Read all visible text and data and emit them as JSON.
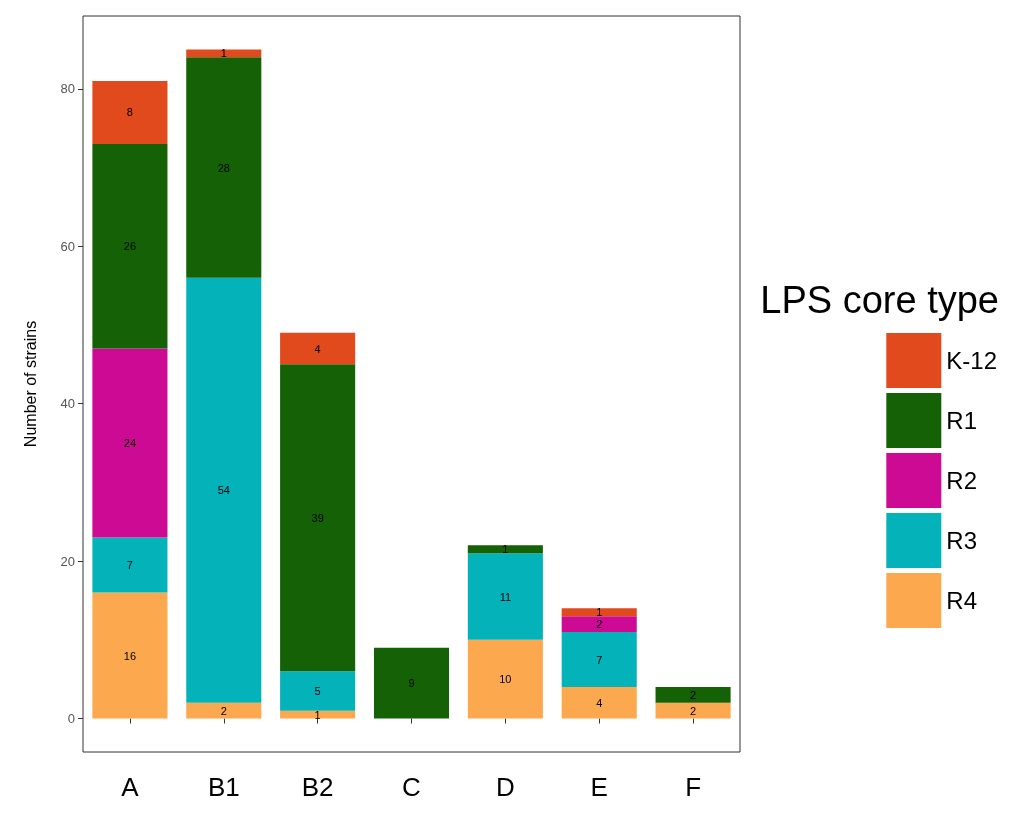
{
  "chart_data": {
    "type": "bar",
    "stacked": true,
    "ylabel": "Number of strains",
    "legend_title": "LPS core type",
    "legend": "right",
    "grid": false,
    "data_labels": true,
    "categories": [
      "A",
      "B1",
      "B2",
      "C",
      "D",
      "E",
      "F"
    ],
    "ylim": [
      -4.25,
      89.25
    ],
    "yticks": [
      0,
      20,
      40,
      60,
      80
    ],
    "series": [
      {
        "name": "R4",
        "color": "#fba84e",
        "values": [
          16,
          2,
          1,
          null,
          10,
          4,
          2
        ]
      },
      {
        "name": "R3",
        "color": "#04b3b9",
        "values": [
          7,
          54,
          5,
          null,
          11,
          7,
          null
        ]
      },
      {
        "name": "R2",
        "color": "#cc0a93",
        "values": [
          24,
          null,
          null,
          null,
          null,
          2,
          null
        ]
      },
      {
        "name": "R1",
        "color": "#156106",
        "values": [
          26,
          28,
          39,
          9,
          1,
          null,
          2
        ]
      },
      {
        "name": "K-12",
        "color": "#e04a1c",
        "values": [
          8,
          1,
          4,
          null,
          null,
          1,
          null
        ]
      }
    ]
  }
}
